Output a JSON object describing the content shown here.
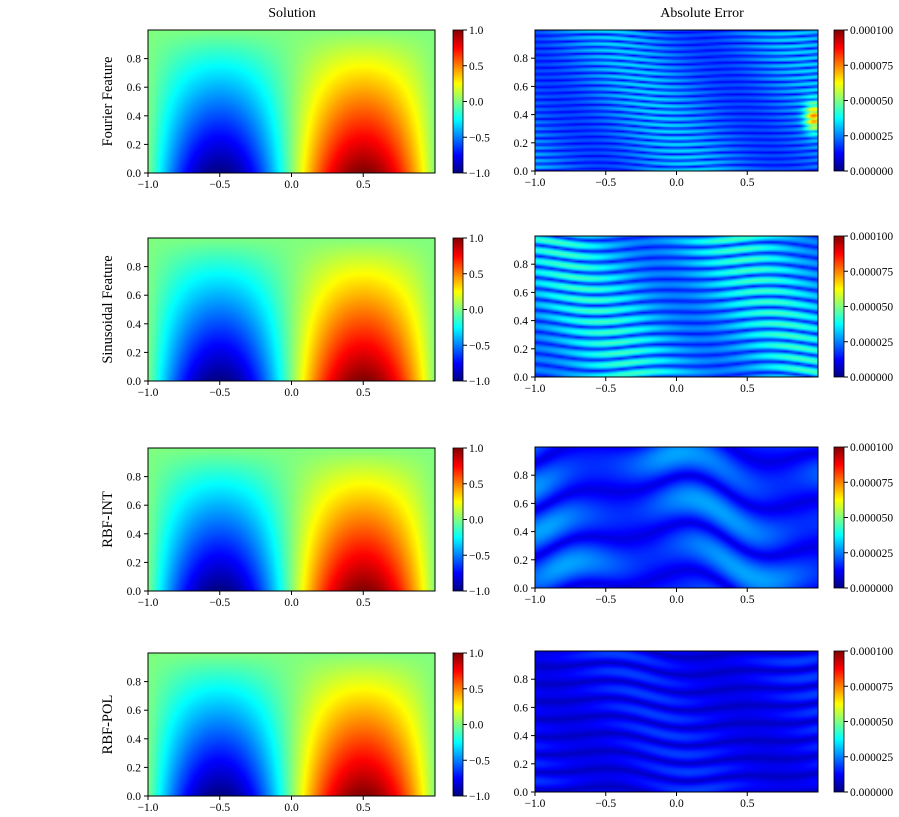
{
  "figure": {
    "column_titles": [
      "Solution",
      "Absolute Error"
    ],
    "row_labels": [
      "Fourier Feature",
      "Sinusoidal Feature",
      "RBF-INT",
      "RBF-POL"
    ]
  },
  "colors": {
    "colormap": "jet",
    "jet_stops": [
      "#00007f",
      "#0000ff",
      "#007fff",
      "#00ffff",
      "#7fff7f",
      "#ffff00",
      "#ff7f00",
      "#ff0000",
      "#7f0000"
    ]
  },
  "chart_data": [
    {
      "type": "heatmap",
      "panel": "solution",
      "row": "Fourier Feature",
      "column": "Solution",
      "xlim": [
        -1.0,
        1.0
      ],
      "ylim": [
        0.0,
        1.0
      ],
      "xticks": [
        "−1.0",
        "−0.5",
        "0.0",
        "0.5"
      ],
      "yticks": [
        "0.0",
        "0.2",
        "0.4",
        "0.6",
        "0.8"
      ],
      "colorbar": {
        "range": [
          -1.0,
          1.0
        ],
        "ticks": [
          "1.0",
          "0.5",
          "0.0",
          "−0.5",
          "−1.0"
        ]
      },
      "description": "u(x,y) = sin(pi*x)*(1-y); max +1 at (0.5,0), min -1 at (-0.5,0)"
    },
    {
      "type": "heatmap",
      "panel": "error",
      "row": "Fourier Feature",
      "column": "Absolute Error",
      "xlim": [
        -1.0,
        1.0
      ],
      "ylim": [
        0.0,
        1.0
      ],
      "xticks": [
        "−1.0",
        "−0.5",
        "0.0",
        "0.5"
      ],
      "yticks": [
        "0.0",
        "0.2",
        "0.4",
        "0.6",
        "0.8"
      ],
      "colorbar": {
        "range": [
          0.0,
          0.0001
        ],
        "ticks": [
          "0.000100",
          "0.000075",
          "0.000050",
          "0.000025",
          "0.000000"
        ]
      },
      "error_level": 0.32,
      "stripes": 22,
      "hotspot": true
    },
    {
      "type": "heatmap",
      "panel": "solution",
      "row": "Sinusoidal Feature",
      "column": "Solution",
      "xlim": [
        -1.0,
        1.0
      ],
      "ylim": [
        0.0,
        1.0
      ],
      "xticks": [
        "−1.0",
        "−0.5",
        "0.0",
        "0.5"
      ],
      "yticks": [
        "0.0",
        "0.2",
        "0.4",
        "0.6",
        "0.8"
      ],
      "colorbar": {
        "range": [
          -1.0,
          1.0
        ],
        "ticks": [
          "1.0",
          "0.5",
          "0.0",
          "−0.5",
          "−1.0"
        ]
      }
    },
    {
      "type": "heatmap",
      "panel": "error",
      "row": "Sinusoidal Feature",
      "column": "Absolute Error",
      "xlim": [
        -1.0,
        1.0
      ],
      "ylim": [
        0.0,
        1.0
      ],
      "xticks": [
        "−1.0",
        "−0.5",
        "0.0",
        "0.5"
      ],
      "yticks": [
        "0.0",
        "0.2",
        "0.4",
        "0.6",
        "0.8"
      ],
      "colorbar": {
        "range": [
          0.0,
          0.0001
        ],
        "ticks": [
          "0.000100",
          "0.000075",
          "0.000050",
          "0.000025",
          "0.000000"
        ]
      },
      "error_level": 0.4,
      "stripes": 13,
      "hotspot": false
    },
    {
      "type": "heatmap",
      "panel": "solution",
      "row": "RBF-INT",
      "column": "Solution",
      "xlim": [
        -1.0,
        1.0
      ],
      "ylim": [
        0.0,
        1.0
      ],
      "xticks": [
        "−1.0",
        "−0.5",
        "0.0",
        "0.5"
      ],
      "yticks": [
        "0.0",
        "0.2",
        "0.4",
        "0.6",
        "0.8"
      ],
      "colorbar": {
        "range": [
          -1.0,
          1.0
        ],
        "ticks": [
          "1.0",
          "0.5",
          "0.0",
          "−0.5",
          "−1.0"
        ]
      }
    },
    {
      "type": "heatmap",
      "panel": "error",
      "row": "RBF-INT",
      "column": "Absolute Error",
      "xlim": [
        -1.0,
        1.0
      ],
      "ylim": [
        0.0,
        1.0
      ],
      "xticks": [
        "−1.0",
        "−0.5",
        "0.0",
        "0.5"
      ],
      "yticks": [
        "0.0",
        "0.2",
        "0.4",
        "0.6",
        "0.8"
      ],
      "colorbar": {
        "range": [
          0.0,
          0.0001
        ],
        "ticks": [
          "0.000100",
          "0.000075",
          "0.000050",
          "0.000025",
          "0.000000"
        ]
      },
      "error_level": 0.26,
      "stripes": 3,
      "hotspot": false
    },
    {
      "type": "heatmap",
      "panel": "solution",
      "row": "RBF-POL",
      "column": "Solution",
      "xlim": [
        -1.0,
        1.0
      ],
      "ylim": [
        0.0,
        1.0
      ],
      "xticks": [
        "−1.0",
        "−0.5",
        "0.0",
        "0.5"
      ],
      "yticks": [
        "0.0",
        "0.2",
        "0.4",
        "0.6",
        "0.8"
      ],
      "colorbar": {
        "range": [
          -1.0,
          1.0
        ],
        "ticks": [
          "1.0",
          "0.5",
          "0.0",
          "−0.5",
          "−1.0"
        ]
      }
    },
    {
      "type": "heatmap",
      "panel": "error",
      "row": "RBF-POL",
      "column": "Absolute Error",
      "xlim": [
        -1.0,
        1.0
      ],
      "ylim": [
        0.0,
        1.0
      ],
      "xticks": [
        "−1.0",
        "−0.5",
        "0.0",
        "0.5"
      ],
      "yticks": [
        "0.0",
        "0.2",
        "0.4",
        "0.6",
        "0.8"
      ],
      "colorbar": {
        "range": [
          0.0,
          0.0001
        ],
        "ticks": [
          "0.000100",
          "0.000075",
          "0.000050",
          "0.000025",
          "0.000000"
        ]
      },
      "error_level": 0.17,
      "stripes": 8,
      "hotspot": false
    }
  ]
}
